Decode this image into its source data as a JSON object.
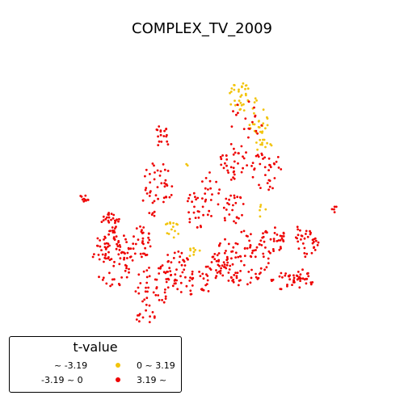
{
  "title": "COMPLEX_TV_2009",
  "legend": {
    "title": "t-value",
    "items": [
      {
        "label": "~ -3.19",
        "color": null
      },
      {
        "label": "-3.19 ~ 0",
        "color": null
      },
      {
        "label": "0 ~ 3.19",
        "color": "#f2c40c"
      },
      {
        "label": "3.19 ~",
        "color": "#ee0000"
      }
    ]
  },
  "colors": {
    "high": "#ee0000",
    "positive": "#f2c40c"
  }
}
